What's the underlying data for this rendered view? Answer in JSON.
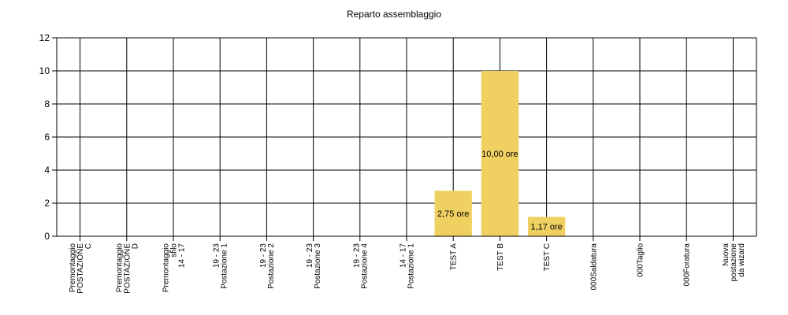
{
  "chart_data": {
    "type": "bar",
    "title": "Reparto assemblaggio",
    "xlabel": "",
    "ylabel": "",
    "ylim": [
      0,
      12
    ],
    "yticks": [
      0,
      2,
      4,
      6,
      8,
      10,
      12
    ],
    "grid": true,
    "bar_color": "#f0d060",
    "categories": [
      [
        "Premontaggio",
        "POSTAZIONE",
        "C"
      ],
      [
        "Premontaggio",
        "POSTAZIONE",
        "D"
      ],
      [
        "Premontaggio",
        "sfilo",
        "14 - 17"
      ],
      [
        "19 - 23",
        "Postazione 1"
      ],
      [
        "19 - 23",
        "Postazione 2"
      ],
      [
        "19 - 23",
        "Postazione 3"
      ],
      [
        "19 - 23",
        "Postazione 4"
      ],
      [
        "14 - 17",
        "Postazione 1"
      ],
      [
        "TEST A"
      ],
      [
        "TEST B"
      ],
      [
        "TEST C"
      ],
      [
        "000Saldatura"
      ],
      [
        "000Taglio"
      ],
      [
        "000Foratura"
      ],
      [
        "Nuova",
        "postazione",
        "da wizard"
      ]
    ],
    "values": [
      0,
      0,
      0,
      0,
      0,
      0,
      0,
      0,
      2.75,
      10.0,
      1.17,
      0,
      0,
      0,
      0
    ],
    "data_labels": [
      "",
      "",
      "",
      "",
      "",
      "",
      "",
      "",
      "2,75 ore",
      "10,00 ore",
      "1,17 ore",
      "",
      "",
      "",
      ""
    ]
  }
}
